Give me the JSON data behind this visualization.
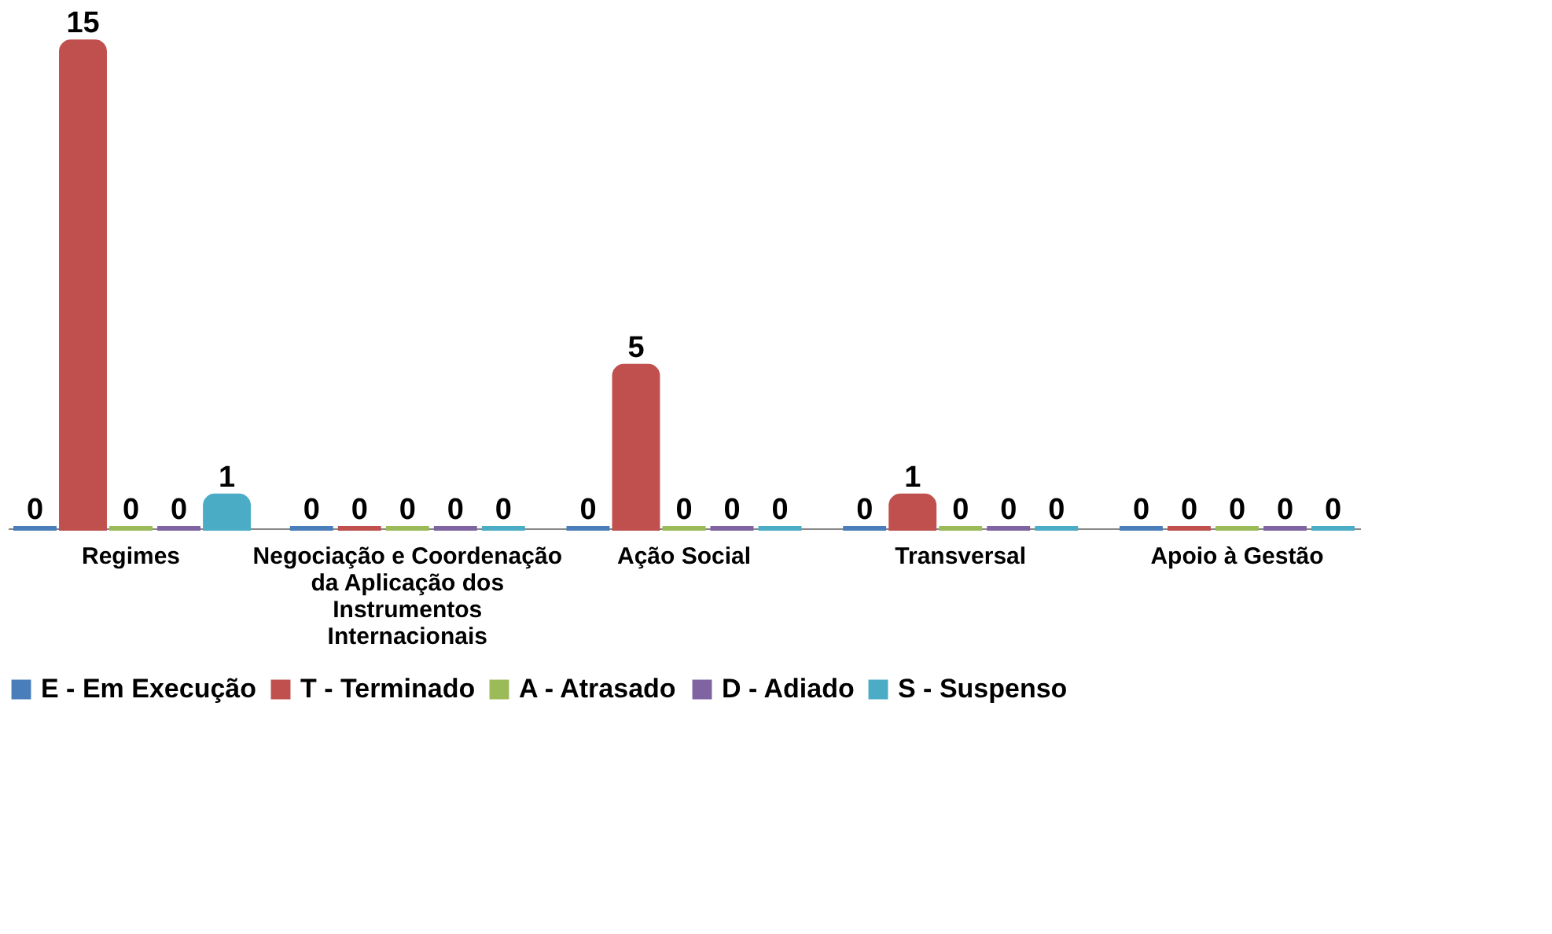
{
  "chart_data": {
    "type": "bar",
    "categories": [
      "Regimes",
      "Negociação e Coordenação da Aplicação dos Instrumentos Internacionais",
      "Ação Social",
      "Transversal",
      "Apoio à Gestão"
    ],
    "series": [
      {
        "name": "E - Em Execução",
        "color": "#4a7ebb",
        "values": [
          0,
          0,
          0,
          0,
          0
        ]
      },
      {
        "name": "T - Terminado",
        "color": "#c0504d",
        "values": [
          15,
          0,
          5,
          1,
          0
        ]
      },
      {
        "name": "A - Atrasado",
        "color": "#9bbb59",
        "values": [
          0,
          0,
          0,
          0,
          0
        ]
      },
      {
        "name": "D - Adiado",
        "color": "#8064a2",
        "values": [
          0,
          0,
          0,
          0,
          0
        ]
      },
      {
        "name": "S - Suspenso",
        "color": "#4bacc6",
        "values": [
          1,
          0,
          0,
          0,
          0
        ]
      }
    ],
    "data_labels": true,
    "legend": "bottom",
    "grid": false,
    "tick_labels": "x"
  }
}
